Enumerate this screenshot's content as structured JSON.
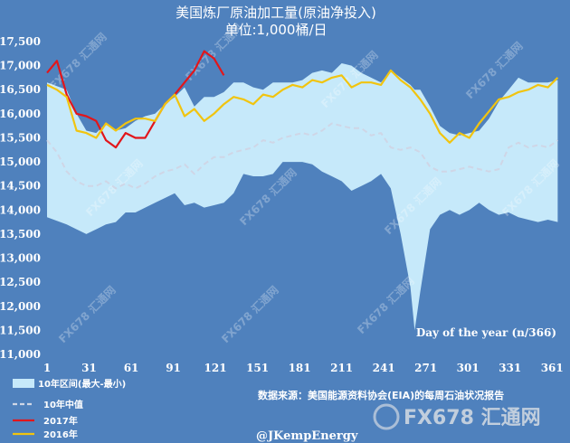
{
  "chart_data": {
    "type": "line",
    "title": "美国炼厂原油加工量(原油净投入)",
    "subtitle": "单位:1,000桶/日",
    "xlabel": "Day of the year (n/366)",
    "ylabel": "",
    "xlim": [
      1,
      366
    ],
    "ylim": [
      11000,
      17500
    ],
    "x_ticks": [
      1,
      31,
      61,
      91,
      121,
      151,
      181,
      211,
      241,
      271,
      301,
      331,
      361
    ],
    "y_ticks": [
      11000,
      11500,
      12000,
      12500,
      13000,
      13500,
      14000,
      14500,
      15000,
      15500,
      16000,
      16500,
      17000,
      17500
    ],
    "band": {
      "name": "10年区间(最大-最小)",
      "color": "#c6e9fa",
      "x": [
        1,
        15,
        22,
        29,
        36,
        43,
        50,
        57,
        64,
        71,
        78,
        85,
        92,
        99,
        106,
        113,
        120,
        127,
        134,
        141,
        148,
        155,
        162,
        169,
        176,
        183,
        190,
        197,
        204,
        211,
        218,
        225,
        232,
        239,
        246,
        253,
        260,
        263,
        267,
        274,
        281,
        288,
        295,
        302,
        309,
        316,
        323,
        330,
        337,
        344,
        351,
        358,
        365
      ],
      "max": [
        16650,
        16500,
        16000,
        15650,
        15600,
        15800,
        15650,
        15700,
        15850,
        15950,
        16000,
        16200,
        16350,
        16550,
        16150,
        16350,
        16350,
        16450,
        16650,
        16650,
        16550,
        16500,
        16650,
        16650,
        16650,
        16700,
        16850,
        16900,
        16850,
        17050,
        17000,
        16850,
        16750,
        16650,
        16900,
        16750,
        16600,
        16500,
        16500,
        16150,
        15750,
        15600,
        15550,
        15600,
        15650,
        15900,
        16250,
        16500,
        16750,
        16650,
        16650,
        16650,
        16700
      ],
      "min": [
        13850,
        13700,
        13600,
        13500,
        13600,
        13700,
        13750,
        13950,
        13950,
        14050,
        14150,
        14250,
        14350,
        14100,
        14150,
        14050,
        14100,
        14150,
        14350,
        14750,
        14700,
        14700,
        14750,
        15000,
        15000,
        15000,
        14950,
        14800,
        14700,
        14600,
        14400,
        14500,
        14600,
        14750,
        14450,
        13500,
        12400,
        11500,
        12300,
        13600,
        13900,
        14000,
        13900,
        14000,
        14150,
        14000,
        13900,
        13950,
        13850,
        13800,
        13750,
        13800,
        13750
      ]
    },
    "series": [
      {
        "name": "10年中值",
        "color": "#cfd6e6",
        "dash": true,
        "x": [
          1,
          8,
          15,
          22,
          29,
          36,
          43,
          50,
          57,
          64,
          71,
          78,
          85,
          92,
          99,
          106,
          113,
          120,
          127,
          134,
          141,
          148,
          155,
          162,
          169,
          176,
          183,
          190,
          197,
          204,
          211,
          218,
          225,
          232,
          239,
          246,
          253,
          260,
          267,
          274,
          281,
          288,
          295,
          302,
          309,
          316,
          323,
          330,
          337,
          344,
          351,
          358,
          365
        ],
        "values": [
          15450,
          15200,
          14800,
          14600,
          14500,
          14500,
          14600,
          14450,
          14550,
          14450,
          14550,
          14700,
          14800,
          14850,
          14950,
          14750,
          14950,
          15100,
          15100,
          15200,
          15250,
          15300,
          15450,
          15400,
          15500,
          15550,
          15600,
          15550,
          15650,
          15800,
          15750,
          15700,
          15700,
          15550,
          15600,
          15300,
          15250,
          15300,
          15200,
          14900,
          14800,
          14800,
          14850,
          14900,
          14850,
          14800,
          14850,
          15300,
          15400,
          15300,
          15350,
          15300,
          15450
        ]
      },
      {
        "name": "2017年",
        "color": "#e2161b",
        "dash": false,
        "x": [
          1,
          8,
          15,
          22,
          29,
          36,
          43,
          50,
          57,
          64,
          71,
          78,
          85,
          92,
          99,
          106,
          113,
          120,
          127
        ],
        "values": [
          16850,
          17100,
          16400,
          16000,
          15950,
          15850,
          15450,
          15300,
          15600,
          15500,
          15500,
          15850,
          16200,
          16400,
          16650,
          16900,
          17300,
          17150,
          16800
        ]
      },
      {
        "name": "2016年",
        "color": "#f1c40f",
        "dash": false,
        "x": [
          1,
          8,
          15,
          22,
          29,
          36,
          43,
          50,
          57,
          64,
          71,
          78,
          85,
          92,
          99,
          106,
          113,
          120,
          127,
          134,
          141,
          148,
          155,
          162,
          169,
          176,
          183,
          190,
          197,
          204,
          211,
          218,
          225,
          232,
          239,
          246,
          253,
          260,
          267,
          274,
          281,
          288,
          295,
          302,
          309,
          316,
          323,
          330,
          337,
          344,
          351,
          358,
          365
        ],
        "values": [
          16600,
          16500,
          16350,
          15650,
          15600,
          15500,
          15800,
          15650,
          15800,
          15900,
          15900,
          15850,
          16200,
          16400,
          15950,
          16100,
          15850,
          16000,
          16200,
          16350,
          16300,
          16200,
          16400,
          16350,
          16500,
          16600,
          16550,
          16700,
          16650,
          16750,
          16800,
          16550,
          16650,
          16650,
          16600,
          16900,
          16700,
          16550,
          16300,
          16000,
          15600,
          15400,
          15600,
          15500,
          15800,
          16050,
          16300,
          16350,
          16450,
          16500,
          16600,
          16550,
          16750
        ]
      }
    ],
    "legend": {
      "position": "bottom-left",
      "items": [
        {
          "label": "10年区间(最大-最小)",
          "kind": "band",
          "color": "#c6e9fa"
        },
        {
          "label": "10年中值",
          "kind": "dash",
          "color": "#cfd6e6"
        },
        {
          "label": "2017年",
          "kind": "line",
          "color": "#e2161b"
        },
        {
          "label": "2016年",
          "kind": "line",
          "color": "#f1c40f"
        }
      ]
    },
    "grid": false
  },
  "source_note": "数据来源：美国能源资料协会(EIA)的每周石油状况报告",
  "handle": "@JKempEnergy",
  "watermark": "FX678 汇通网",
  "brand_watermark": "FX678 汇通网"
}
